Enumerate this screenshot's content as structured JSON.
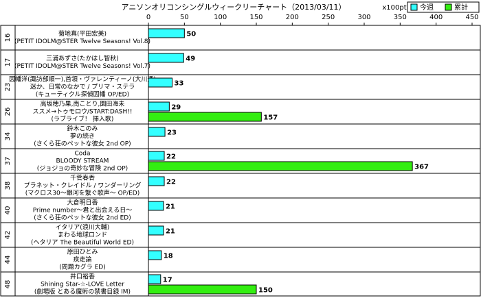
{
  "chart_data": {
    "type": "bar",
    "orientation": "horizontal",
    "title": "アニソンオリコンシングルウィークリーチャート（2013/03/11）",
    "unit": "x100pt",
    "ranks": [
      "16",
      "17",
      "23",
      "26",
      "34",
      "37",
      "38",
      "40",
      "42",
      "44",
      "48"
    ],
    "categories": [
      [
        "菊地真(平田宏美)",
        "(PETIT IDOLM@STER Twelve Seasons! Vol.8)"
      ],
      [
        "三浦あずさ(たかはし智秋)",
        "(PETIT IDOLM@STER Twelve Seasons! Vol.7)"
      ],
      [
        "因幡洋(諏訪部順一),首領・ヴァレンティーノ(大川透)",
        "迷か、日常のなかで / プリマ・ステラ",
        "(キューティクル探偵因幡 OP/ED)"
      ],
      [
        "高坂穂乃果,南ことり,園田海未",
        "ススメ→トゥモロウ/START:DASH!!",
        "(ラブライブ！ 挿入歌)"
      ],
      [
        "鈴木このみ",
        "夢の続き",
        "(さくら荘のペットな彼女 2nd OP)"
      ],
      [
        "Coda",
        "BLOODY STREAM",
        "(ジョジョの奇妙な冒険 2nd OP)"
      ],
      [
        "千菅春香",
        "プラネット・クレイドル / ワンダーリング",
        "(マクロス30～銀河を繋ぐ歌声～ OP/ED)"
      ],
      [
        "大倉明日香",
        "Prime number～君と出会える日～",
        "(さくら荘のペットな彼女 2nd ED)"
      ],
      [
        "イタリア(浪川大輔)",
        "まわる地球ロンド",
        "(ヘタリア The Beautiful World ED)"
      ],
      [
        "原田ひとみ",
        "疾走論",
        "(問題カグラ ED)"
      ],
      [
        "井口裕香",
        "Shining Star-☆-LOVE Letter",
        "(劇場版 とある魔術の禁書目録 IM)"
      ]
    ],
    "series": [
      {
        "name": "今週",
        "color": "#33ffff",
        "values": [
          50,
          49,
          33,
          29,
          23,
          22,
          22,
          21,
          21,
          18,
          17
        ]
      },
      {
        "name": "累計",
        "color": "#33ee11",
        "values": [
          null,
          null,
          null,
          157,
          null,
          367,
          null,
          null,
          null,
          null,
          150
        ]
      }
    ],
    "xlim": [
      0,
      450
    ],
    "xticks": [
      0,
      50,
      100,
      150,
      200,
      250,
      300,
      350,
      400,
      450
    ],
    "legend": "top-right"
  }
}
